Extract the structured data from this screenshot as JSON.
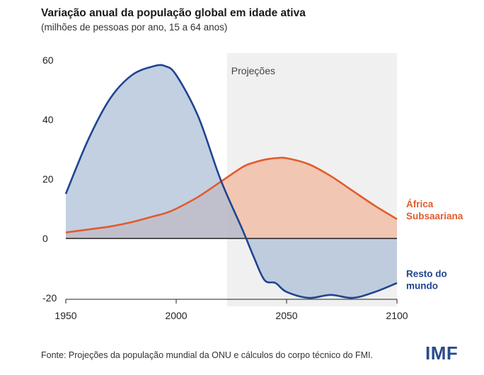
{
  "title": "Variação anual da população global em idade ativa",
  "subtitle": "(milhões de pessoas por ano, 15 a 64 anos)",
  "source": "Fonte: Projeções da população mundial da ONU e cálculos do corpo técnico do FMI.",
  "logo": "IMF",
  "colors": {
    "africa_line": "#e25b2c",
    "africa_fill": "#f1b89f",
    "rest_line": "#1f4590",
    "rest_fill": "#a9bcd6",
    "projection_band": "#f0f0f0"
  },
  "chart_data": {
    "type": "area",
    "title": "Variação anual da população global em idade ativa",
    "subtitle": "(milhões de pessoas por ano, 15 a 64 anos)",
    "xlabel": "",
    "ylabel": "",
    "xlim": [
      1950,
      2100
    ],
    "ylim": [
      -20,
      60
    ],
    "xticks": [
      1950,
      2000,
      2050,
      2100
    ],
    "yticks": [
      -20,
      0,
      20,
      40,
      60
    ],
    "grid": false,
    "projection": {
      "label": "Projeções",
      "start": 2023,
      "end": 2100
    },
    "x": [
      1950,
      1960,
      1970,
      1980,
      1990,
      1995,
      2000,
      2010,
      2020,
      2030,
      2035,
      2040,
      2045,
      2050,
      2060,
      2070,
      2080,
      2090,
      2100
    ],
    "series": [
      {
        "name": "África Subsaariana",
        "label": "África\nSubsaariana",
        "values": [
          2,
          3,
          4,
          5.5,
          7.5,
          8.5,
          10,
          14,
          19,
          24,
          25.5,
          26.5,
          27,
          27,
          25,
          21,
          16,
          11,
          6.5
        ]
      },
      {
        "name": "Resto do mundo",
        "label": "Resto do\nmundo",
        "values": [
          15,
          33,
          47,
          55,
          58,
          58,
          55,
          41,
          20,
          3,
          -6,
          -14,
          -15,
          -18,
          -20,
          -19,
          -20,
          -18,
          -15
        ]
      }
    ]
  }
}
